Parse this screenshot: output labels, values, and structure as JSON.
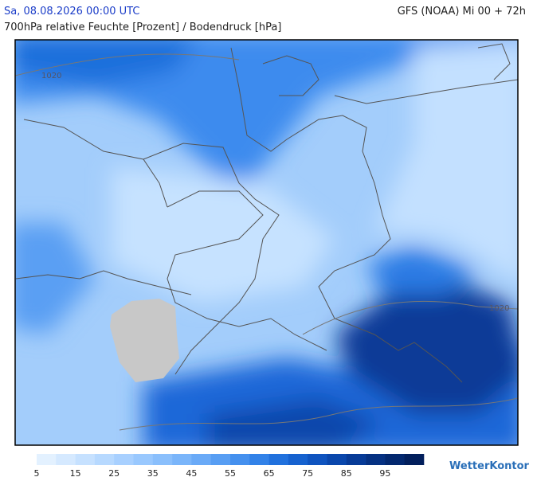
{
  "header": {
    "run_time": "Sa, 08.08.2026 00:00 UTC",
    "model": "GFS (NOAA) Mi 00 + 72h",
    "subtitle": "700hPa relative Feuchte [Prozent] / Bodendruck [hPa]"
  },
  "map": {
    "isobar_labels": [
      "1020",
      "1020"
    ]
  },
  "legend": {
    "ticks": [
      5,
      15,
      25,
      35,
      45,
      55,
      65,
      75,
      85,
      95
    ],
    "colors": [
      "#e3f1ff",
      "#d5e9ff",
      "#c6e1ff",
      "#b7d9ff",
      "#a8d0ff",
      "#99c8fe",
      "#8abffc",
      "#7ab5fa",
      "#6aaaf7",
      "#589ef3",
      "#4590ee",
      "#3282e8",
      "#2171dd",
      "#1662cf",
      "#0f54bf",
      "#0a47ac",
      "#073b97",
      "#053182",
      "#03286f",
      "#021f5c"
    ]
  },
  "brand": "WetterKontor"
}
